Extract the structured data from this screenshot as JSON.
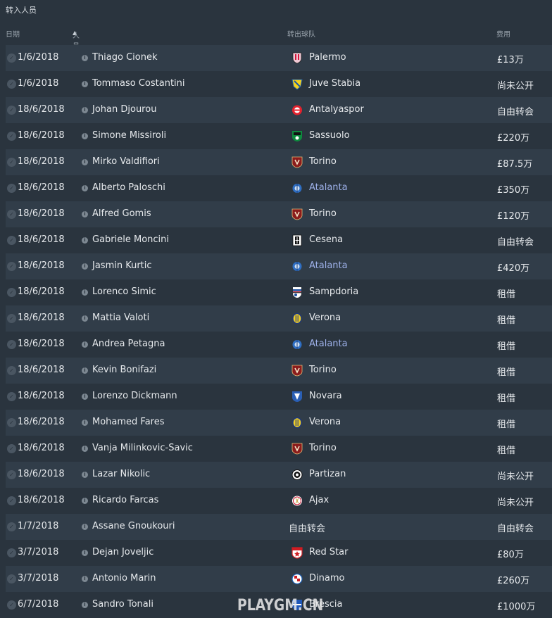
{
  "title": "转入人员",
  "columns": {
    "date": "日期",
    "person": "人员",
    "club": "转出球队",
    "fee": "费用"
  },
  "watermark": "PLAYGM.CN",
  "rows": [
    {
      "date": "1/6/2018",
      "person": "Thiago Cionek",
      "club": "Palermo",
      "fee": "£13万",
      "badge": "palermo-badge-icon"
    },
    {
      "date": "1/6/2018",
      "person": "Tommaso Costantini",
      "club": "Juve Stabia",
      "fee": "尚未公开",
      "badge": "juve-stabia-badge-icon"
    },
    {
      "date": "18/6/2018",
      "person": "Johan Djourou",
      "club": "Antalyaspor",
      "fee": "自由转会",
      "badge": "antalyaspor-badge-icon"
    },
    {
      "date": "18/6/2018",
      "person": "Simone Missiroli",
      "club": "Sassuolo",
      "fee": "£220万",
      "badge": "sassuolo-badge-icon"
    },
    {
      "date": "18/6/2018",
      "person": "Mirko Valdifiori",
      "club": "Torino",
      "fee": "£87.5万",
      "badge": "torino-badge-icon"
    },
    {
      "date": "18/6/2018",
      "person": "Alberto Paloschi",
      "club": "Atalanta",
      "fee": "£350万",
      "badge": "atalanta-badge-icon"
    },
    {
      "date": "18/6/2018",
      "person": "Alfred Gomis",
      "club": "Torino",
      "fee": "£120万",
      "badge": "torino-badge-icon"
    },
    {
      "date": "18/6/2018",
      "person": "Gabriele Moncini",
      "club": "Cesena",
      "fee": "自由转会",
      "badge": "cesena-badge-icon"
    },
    {
      "date": "18/6/2018",
      "person": "Jasmin Kurtic",
      "club": "Atalanta",
      "fee": "£420万",
      "badge": "atalanta-badge-icon"
    },
    {
      "date": "18/6/2018",
      "person": "Lorenco Simic",
      "club": "Sampdoria",
      "fee": "租借",
      "badge": "sampdoria-badge-icon"
    },
    {
      "date": "18/6/2018",
      "person": "Mattia Valoti",
      "club": "Verona",
      "fee": "租借",
      "badge": "verona-badge-icon"
    },
    {
      "date": "18/6/2018",
      "person": "Andrea Petagna",
      "club": "Atalanta",
      "fee": "租借",
      "badge": "atalanta-badge-icon"
    },
    {
      "date": "18/6/2018",
      "person": "Kevin Bonifazi",
      "club": "Torino",
      "fee": "租借",
      "badge": "torino-badge-icon"
    },
    {
      "date": "18/6/2018",
      "person": "Lorenzo Dickmann",
      "club": "Novara",
      "fee": "租借",
      "badge": "novara-badge-icon"
    },
    {
      "date": "18/6/2018",
      "person": "Mohamed Fares",
      "club": "Verona",
      "fee": "租借",
      "badge": "verona-badge-icon"
    },
    {
      "date": "18/6/2018",
      "person": "Vanja Milinkovic-Savic",
      "club": "Torino",
      "fee": "租借",
      "badge": "torino-badge-icon"
    },
    {
      "date": "18/6/2018",
      "person": "Lazar Nikolic",
      "club": "Partizan",
      "fee": "尚未公开",
      "badge": "partizan-badge-icon"
    },
    {
      "date": "18/6/2018",
      "person": "Ricardo Farcas",
      "club": "Ajax",
      "fee": "尚未公开",
      "badge": "ajax-badge-icon"
    },
    {
      "date": "1/7/2018",
      "person": "Assane Gnoukouri",
      "club": "自由转会",
      "fee": "自由转会",
      "badge": ""
    },
    {
      "date": "3/7/2018",
      "person": "Dejan Joveljic",
      "club": "Red Star",
      "fee": "£80万",
      "badge": "red-star-badge-icon"
    },
    {
      "date": "3/7/2018",
      "person": "Antonio Marin",
      "club": "Dinamo",
      "fee": "£260万",
      "badge": "dinamo-badge-icon"
    },
    {
      "date": "6/7/2018",
      "person": "Sandro Tonali",
      "club": "Brescia",
      "fee": "£1000万",
      "badge": "brescia-badge-icon"
    }
  ]
}
